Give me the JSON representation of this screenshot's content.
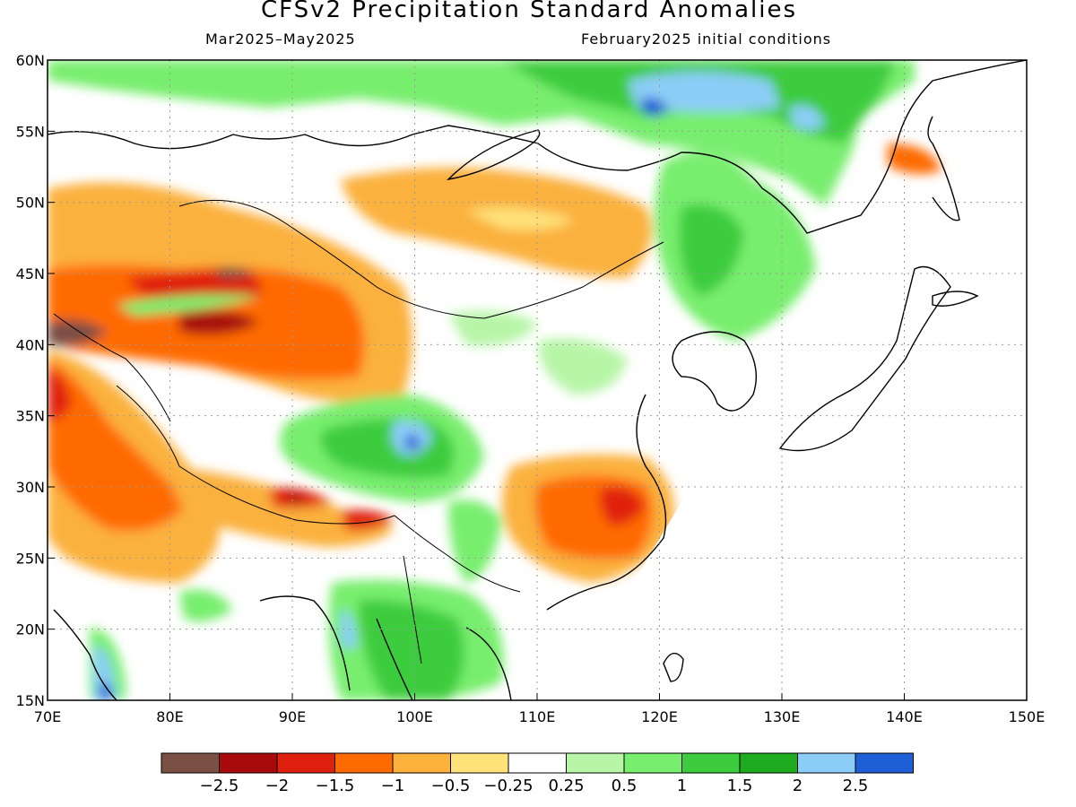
{
  "title": "CFSv2 Precipitation Standard Anomalies",
  "subtitle_left": "Mar2025–May2025",
  "subtitle_right": "February2025 initial conditions",
  "map": {
    "lon_range": [
      70,
      150
    ],
    "lat_range": [
      15,
      60
    ],
    "lon_ticks": [
      "70E",
      "80E",
      "90E",
      "100E",
      "110E",
      "120E",
      "130E",
      "140E",
      "150E"
    ],
    "lat_ticks": [
      "60N",
      "55N",
      "50N",
      "45N",
      "40N",
      "35N",
      "30N",
      "25N",
      "20N",
      "15N"
    ],
    "grid": "dotted"
  },
  "colorbar": {
    "colors": [
      "#7a5044",
      "#a60a0a",
      "#e0200f",
      "#ff6a00",
      "#fbb13c",
      "#ffe27a",
      "#ffffff",
      "#b7f5a7",
      "#78ee6e",
      "#3dcc3d",
      "#1fab1f",
      "#8ccdf7",
      "#1f5fd6"
    ],
    "labels": [
      "−2.5",
      "−2",
      "−1.5",
      "−1",
      "−0.5",
      "−0.25",
      "0.25",
      "0.5",
      "1",
      "1.5",
      "2",
      "2.5"
    ]
  },
  "regions": [
    {
      "name": "siberia-wet",
      "lon": 108,
      "lat": 56,
      "value": 1.5
    },
    {
      "name": "lake-baikal-north-wet",
      "lon": 121,
      "lat": 57,
      "value": 2.5
    },
    {
      "name": "northeast-china-wet",
      "lon": 124,
      "lat": 46,
      "value": 1.5
    },
    {
      "name": "mongolia-dry",
      "lon": 104,
      "lat": 48,
      "value": -1
    },
    {
      "name": "kazakhstan-dry",
      "lon": 86,
      "lat": 44.5,
      "value": -2.5
    },
    {
      "name": "tarim-dry",
      "lon": 88,
      "lat": 39,
      "value": -1.5
    },
    {
      "name": "central-china-wet",
      "lon": 100,
      "lat": 33.5,
      "value": 2.5
    },
    {
      "name": "southeast-china-dry",
      "lon": 117,
      "lat": 27.5,
      "value": -2
    },
    {
      "name": "tibet-dry",
      "lon": 90.5,
      "lat": 29,
      "value": -2
    },
    {
      "name": "indochina-wet",
      "lon": 100,
      "lat": 19,
      "value": 1.5
    },
    {
      "name": "india-west-wet",
      "lon": 74.5,
      "lat": 16.5,
      "value": 2.5
    }
  ]
}
